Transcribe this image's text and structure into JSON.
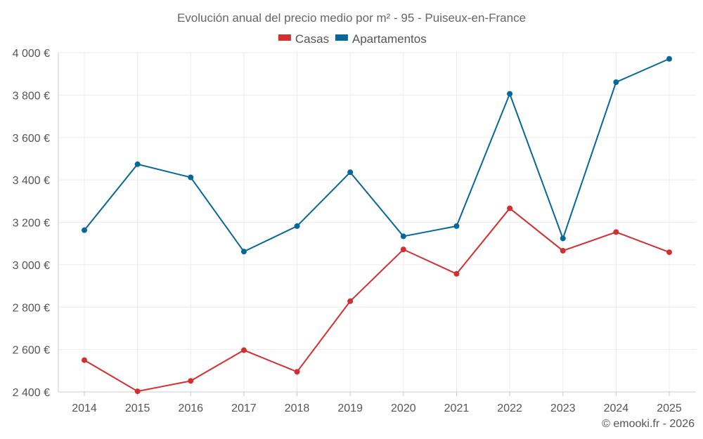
{
  "chart_data": {
    "type": "line",
    "title": "Evolución anual del precio medio por m² - 95 - Puiseux-en-France",
    "categories": [
      "2014",
      "2015",
      "2016",
      "2017",
      "2018",
      "2019",
      "2020",
      "2021",
      "2022",
      "2023",
      "2024",
      "2025"
    ],
    "series": [
      {
        "name": "Casas",
        "color": "#d32f2f",
        "values": [
          2550,
          2403,
          2452,
          2597,
          2495,
          2828,
          3072,
          2957,
          3266,
          3066,
          3154,
          3059
        ]
      },
      {
        "name": "Apartamentos",
        "color": "#06679b",
        "values": [
          3163,
          3474,
          3412,
          3062,
          3182,
          3436,
          3134,
          3182,
          3806,
          3124,
          3861,
          3971
        ]
      }
    ],
    "ylim": [
      2400,
      4000
    ],
    "yticks": [
      2400,
      2600,
      2800,
      3000,
      3200,
      3400,
      3600,
      3800,
      4000
    ],
    "ytick_labels": [
      "2 400 €",
      "2 600 €",
      "2 800 €",
      "3 000 €",
      "3 200 €",
      "3 400 €",
      "3 600 €",
      "3 800 €",
      "4 000 €"
    ],
    "grid": true,
    "legend_position": "top-center",
    "xlabel": "",
    "ylabel": ""
  },
  "credit": "© emooki.fr - 2026"
}
